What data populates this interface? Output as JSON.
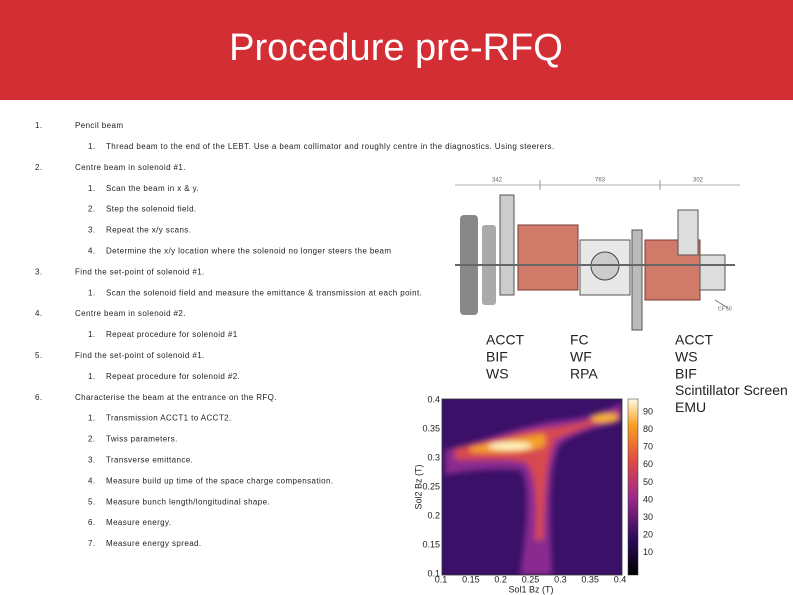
{
  "header": {
    "title": "Procedure pre-RFQ"
  },
  "steps": [
    {
      "number": "1.",
      "text": "Pencil beam",
      "substeps": [
        {
          "number": "1.",
          "text": "Thread beam to the end of the LEBT. Use a beam collimator and roughly centre in the diagnostics. Using steerers."
        }
      ]
    },
    {
      "number": "2.",
      "text": "Centre beam in solenoid #1.",
      "substeps": [
        {
          "number": "1.",
          "text": "Scan the beam in x & y."
        },
        {
          "number": "2.",
          "text": "Step the solenoid field."
        },
        {
          "number": "3.",
          "text": "Repeat the x/y scans."
        },
        {
          "number": "4.",
          "text": "Determine the x/y location where the solenoid no longer steers the beam"
        }
      ]
    },
    {
      "number": "3.",
      "text": "Find the set-point of solenoid #1.",
      "substeps": [
        {
          "number": "1.",
          "text": "Scan the solenoid field and measure the emittance & transmission at each point."
        }
      ]
    },
    {
      "number": "4.",
      "text": "Centre beam in solenoid #2.",
      "substeps": [
        {
          "number": "1.",
          "text": "Repeat procedure for solenoid #1"
        }
      ]
    },
    {
      "number": "5.",
      "text": "Find the set-point of solenoid #1.",
      "substeps": [
        {
          "number": "1.",
          "text": "Repeat procedure for solenoid #2."
        }
      ]
    },
    {
      "number": "6.",
      "text": "Characterise the beam at the entrance on the RFQ.",
      "substeps": [
        {
          "number": "1.",
          "text": "Transmission ACCT1 to ACCT2."
        },
        {
          "number": "2.",
          "text": "Twiss parameters."
        },
        {
          "number": "3.",
          "text": "Transverse emittance."
        },
        {
          "number": "4.",
          "text": "Measure build up time of the space charge compensation."
        },
        {
          "number": "5.",
          "text": "Measure bunch length/longitudinal shape."
        },
        {
          "number": "6.",
          "text": "Measure energy."
        },
        {
          "number": "7.",
          "text": "Measure energy spread."
        }
      ]
    }
  ],
  "diagram": {
    "dimensions": [
      "342",
      "763",
      "302"
    ],
    "flange_label": "CF 50"
  },
  "diagnostics": [
    {
      "items": [
        "ACCT",
        "BIF",
        "WS"
      ]
    },
    {
      "items": [
        "FC",
        "WF",
        "RPA"
      ]
    },
    {
      "items": [
        "ACCT",
        "WS",
        "BIF",
        "Scintillator Screen",
        "EMU"
      ]
    }
  ],
  "plot": {
    "x_label": "Sol1 Bz (T)",
    "y_label": "Sol2 Bz (T)",
    "xticks": [
      "0.1",
      "0.15",
      "0.2",
      "0.25",
      "0.3",
      "0.35",
      "0.4"
    ],
    "yticks": [
      "0.1",
      "0.15",
      "0.2",
      "0.25",
      "0.3",
      "0.35",
      "0.4"
    ],
    "colorbar_ticks": [
      "90",
      "80",
      "70",
      "60",
      "50",
      "40",
      "30",
      "20",
      "10"
    ]
  }
}
